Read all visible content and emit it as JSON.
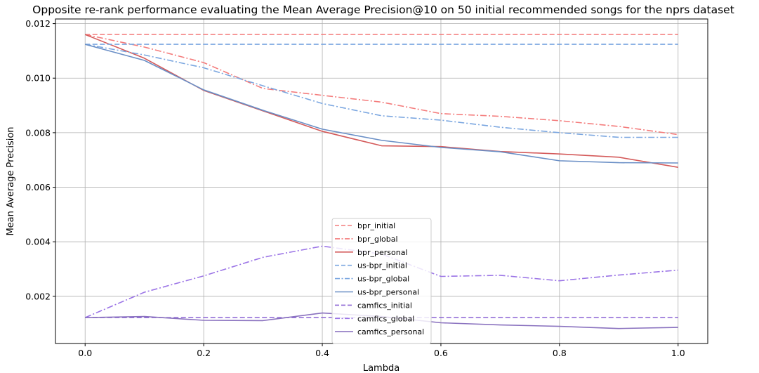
{
  "chart_data": {
    "type": "line",
    "title": "Opposite re-rank performance evaluating the Mean Average Precision@10 on 50 initial recommended songs for the nprs dataset",
    "xlabel": "Lambda",
    "ylabel": "Mean Average Precision",
    "xlim": [
      -0.05,
      1.05
    ],
    "ylim": [
      0.00027,
      0.01217
    ],
    "xticks": [
      0.0,
      0.2,
      0.4,
      0.6,
      0.8,
      1.0
    ],
    "xtick_labels": [
      "0.0",
      "0.2",
      "0.4",
      "0.6",
      "0.8",
      "1.0"
    ],
    "yticks": [
      0.002,
      0.004,
      0.006,
      0.008,
      0.01,
      0.012
    ],
    "ytick_labels": [
      "0.002",
      "0.004",
      "0.006",
      "0.008",
      "0.010",
      "0.012"
    ],
    "grid": true,
    "legend_position": "lower-center",
    "x": [
      0.0,
      0.1,
      0.2,
      0.3,
      0.4,
      0.5,
      0.6,
      0.7,
      0.8,
      0.9,
      1.0
    ],
    "series": [
      {
        "name": "bpr_initial",
        "color": "#f47c7c",
        "dash": "dashed",
        "values": [
          0.0116,
          0.0116,
          0.0116,
          0.0116,
          0.0116,
          0.0116,
          0.0116,
          0.0116,
          0.0116,
          0.0116,
          0.0116
        ]
      },
      {
        "name": "bpr_global",
        "color": "#f47c7c",
        "dash": "dashdot",
        "values": [
          0.0116,
          0.01114,
          0.01057,
          0.00962,
          0.00937,
          0.00912,
          0.0087,
          0.0086,
          0.00844,
          0.00823,
          0.00793
        ]
      },
      {
        "name": "bpr_personal",
        "color": "#d45a5a",
        "dash": "solid",
        "values": [
          0.0116,
          0.01073,
          0.00955,
          0.0088,
          0.00805,
          0.00752,
          0.00749,
          0.00731,
          0.00722,
          0.0071,
          0.00673
        ]
      },
      {
        "name": "us-bpr_initial",
        "color": "#7aa6e0",
        "dash": "dashed",
        "values": [
          0.01124,
          0.01124,
          0.01124,
          0.01124,
          0.01124,
          0.01124,
          0.01124,
          0.01124,
          0.01124,
          0.01124,
          0.01124
        ]
      },
      {
        "name": "us-bpr_global",
        "color": "#7aa6e0",
        "dash": "dashdot",
        "values": [
          0.01124,
          0.01085,
          0.01038,
          0.00972,
          0.00907,
          0.00862,
          0.00846,
          0.0082,
          0.008,
          0.00783,
          0.00783
        ]
      },
      {
        "name": "us-bpr_personal",
        "color": "#6a8fc6",
        "dash": "solid",
        "values": [
          0.01124,
          0.01065,
          0.00957,
          0.00882,
          0.00813,
          0.00772,
          0.00746,
          0.0073,
          0.00697,
          0.0069,
          0.00689
        ]
      },
      {
        "name": "camfics_initial",
        "color": "#8b63d4",
        "dash": "dashed",
        "values": [
          0.00122,
          0.00122,
          0.00122,
          0.00122,
          0.00122,
          0.00122,
          0.00122,
          0.00122,
          0.00122,
          0.00122,
          0.00122
        ]
      },
      {
        "name": "camfics_global",
        "color": "#9b74e6",
        "dash": "dashdot",
        "values": [
          0.00122,
          0.00215,
          0.00275,
          0.00343,
          0.00384,
          0.00355,
          0.00273,
          0.00277,
          0.00257,
          0.00278,
          0.00296
        ]
      },
      {
        "name": "camfics_personal",
        "color": "#8a72bf",
        "dash": "solid",
        "values": [
          0.00122,
          0.00126,
          0.00112,
          0.00111,
          0.00139,
          0.00126,
          0.00103,
          0.00095,
          0.0009,
          0.00082,
          0.00086
        ]
      }
    ]
  }
}
